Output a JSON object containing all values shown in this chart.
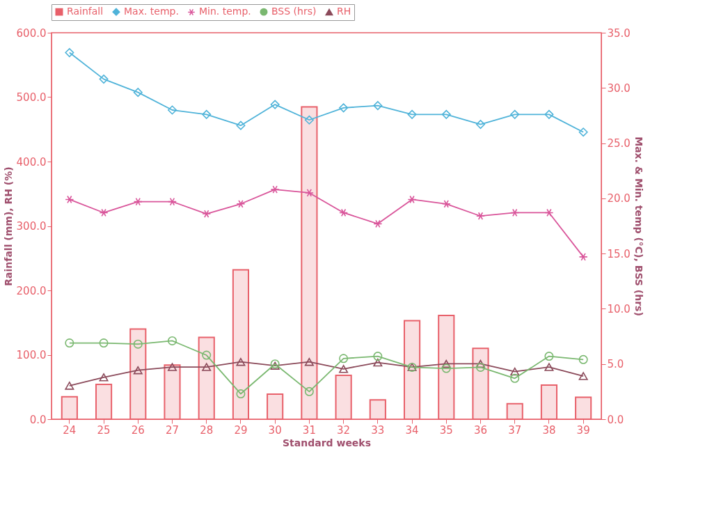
{
  "chart_data": {
    "type": "bar",
    "xlabel": "Standard weeks",
    "ylabel": "Rainfall (mm), RH (%)",
    "y2label": "Max. & Min. temp (°C), BSS (hrs)",
    "categories": [
      "24",
      "25",
      "26",
      "27",
      "28",
      "29",
      "30",
      "31",
      "32",
      "33",
      "34",
      "35",
      "36",
      "37",
      "38",
      "39"
    ],
    "series": [
      {
        "name": "Rainfall",
        "color": "#e8606a",
        "values": [
          35,
          54,
          140,
          84,
          127,
          232,
          39,
          485,
          68,
          30,
          153,
          161,
          110,
          24,
          53,
          34
        ]
      },
      {
        "name": "Max. temp.",
        "type": "line",
        "axis": "y2",
        "marker": "diamond",
        "color": "#4fb3d9",
        "values": [
          33.2,
          30.8,
          29.6,
          28.0,
          27.6,
          26.6,
          28.5,
          27.1,
          28.2,
          28.4,
          27.6,
          27.6,
          26.7,
          27.6,
          27.6,
          26.0
        ]
      },
      {
        "name": "Min. temp.",
        "type": "line",
        "axis": "y2",
        "marker": "cross",
        "color": "#d9559a",
        "values": [
          19.9,
          18.7,
          19.7,
          19.7,
          18.6,
          19.5,
          20.8,
          20.5,
          18.7,
          17.7,
          19.9,
          19.5,
          18.4,
          18.7,
          18.7,
          14.7
        ]
      },
      {
        "name": "BSS (hrs)",
        "type": "line",
        "axis": "y2",
        "marker": "circle",
        "color": "#7ab870",
        "values": [
          6.9,
          6.9,
          6.8,
          7.1,
          5.8,
          2.3,
          5.0,
          2.5,
          5.5,
          5.7,
          4.7,
          4.6,
          4.7,
          3.7,
          5.7,
          5.4
        ]
      },
      {
        "name": "RH",
        "type": "line",
        "marker": "triangle",
        "color": "#8b4a5a",
        "values": [
          52,
          65,
          76,
          81,
          81,
          89,
          83,
          89,
          78,
          88,
          81,
          86,
          86,
          74,
          81,
          67
        ]
      }
    ],
    "ylim": [
      0,
      600
    ],
    "yticks": [
      {
        "value": 0,
        "label": "0.0"
      },
      {
        "value": 100,
        "label": "100.0"
      },
      {
        "value": 200,
        "label": "200.0"
      },
      {
        "value": 300,
        "label": "300.0"
      },
      {
        "value": 400,
        "label": "400.0"
      },
      {
        "value": 500,
        "label": "500.0"
      },
      {
        "value": 600,
        "label": "600.0"
      }
    ],
    "y2lim": [
      0,
      35
    ],
    "y2ticks": [
      {
        "value": 0,
        "label": "0.0"
      },
      {
        "value": 5,
        "label": "5.0"
      },
      {
        "value": 10,
        "label": "10.0"
      },
      {
        "value": 15,
        "label": "15.0"
      },
      {
        "value": 20,
        "label": "20.0"
      },
      {
        "value": 25,
        "label": "25.0"
      },
      {
        "value": 30,
        "label": "30.0"
      },
      {
        "value": 35,
        "label": "35.0"
      }
    ],
    "grid": false,
    "legend": "top",
    "line_style": "solid"
  }
}
